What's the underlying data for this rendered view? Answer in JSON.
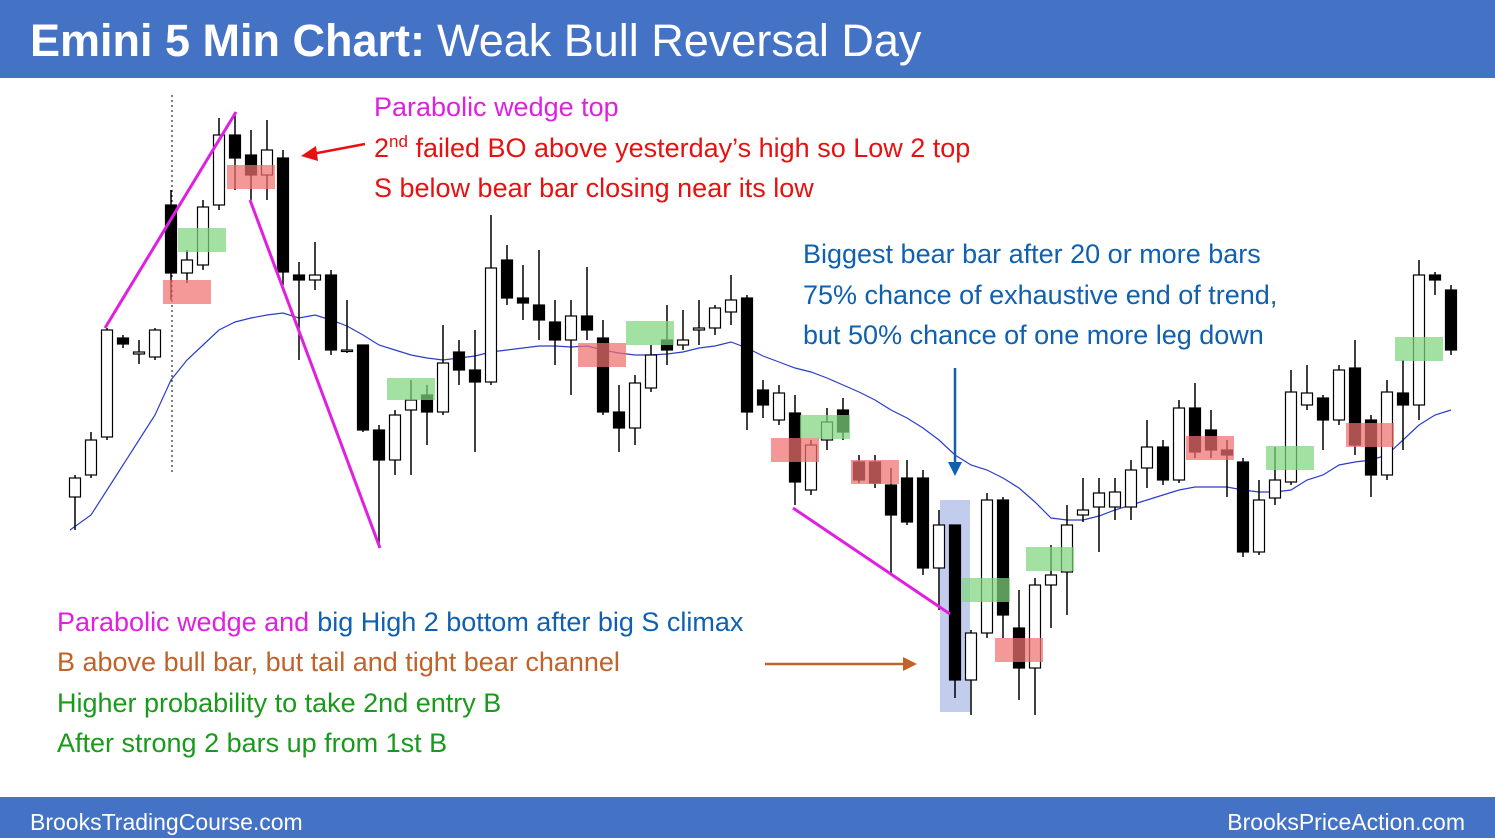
{
  "header": {
    "title_bold": "Emini 5 Min Chart:",
    "title_rest": "Weak Bull Reversal Day"
  },
  "chart_data": {
    "type": "candlestick",
    "ylim": [
      0,
      800
    ],
    "bull_color": "#ffffff",
    "bear_color": "#000000",
    "ma_color": "#2b3fc8",
    "candles": [
      [
        303,
        325,
        270,
        322
      ],
      [
        325,
        368,
        322,
        360
      ],
      [
        363,
        472,
        360,
        470
      ],
      [
        462,
        465,
        452,
        456
      ],
      [
        446,
        460,
        436,
        448
      ],
      [
        443,
        472,
        440,
        470
      ],
      [
        595,
        610,
        500,
        527
      ],
      [
        527,
        550,
        517,
        540
      ],
      [
        535,
        600,
        530,
        593
      ],
      [
        595,
        682,
        590,
        665
      ],
      [
        665,
        688,
        610,
        642
      ],
      [
        645,
        670,
        600,
        625
      ],
      [
        625,
        680,
        600,
        650
      ],
      [
        642,
        650,
        515,
        528
      ],
      [
        525,
        538,
        440,
        520
      ],
      [
        520,
        558,
        510,
        525
      ],
      [
        525,
        530,
        445,
        450
      ],
      [
        450,
        500,
        447,
        450
      ],
      [
        455,
        455,
        368,
        370
      ],
      [
        370,
        375,
        252,
        340
      ],
      [
        340,
        390,
        325,
        385
      ],
      [
        390,
        420,
        325,
        400
      ],
      [
        405,
        415,
        355,
        388
      ],
      [
        388,
        475,
        385,
        437
      ],
      [
        448,
        460,
        415,
        430
      ],
      [
        430,
        470,
        348,
        418
      ],
      [
        418,
        585,
        415,
        532
      ],
      [
        540,
        555,
        495,
        502
      ],
      [
        502,
        535,
        480,
        497
      ],
      [
        495,
        550,
        460,
        480
      ],
      [
        478,
        500,
        435,
        460
      ],
      [
        460,
        500,
        405,
        484
      ],
      [
        484,
        533,
        460,
        470
      ],
      [
        462,
        480,
        385,
        388
      ],
      [
        388,
        415,
        348,
        372
      ],
      [
        372,
        425,
        355,
        417
      ],
      [
        412,
        455,
        408,
        445
      ],
      [
        460,
        495,
        435,
        450
      ],
      [
        455,
        490,
        450,
        460
      ],
      [
        470,
        500,
        455,
        472
      ],
      [
        472,
        495,
        465,
        492
      ],
      [
        488,
        525,
        475,
        500
      ],
      [
        502,
        505,
        370,
        388
      ],
      [
        410,
        420,
        382,
        395
      ],
      [
        380,
        415,
        375,
        407
      ],
      [
        387,
        405,
        295,
        318
      ],
      [
        310,
        360,
        305,
        355
      ],
      [
        360,
        392,
        350,
        378
      ],
      [
        390,
        402,
        360,
        368
      ],
      [
        338,
        345,
        317,
        320
      ],
      [
        338,
        345,
        312,
        317
      ],
      [
        315,
        332,
        225,
        285
      ],
      [
        322,
        340,
        275,
        278
      ],
      [
        322,
        330,
        225,
        232
      ],
      [
        232,
        290,
        190,
        275
      ],
      [
        275,
        275,
        102,
        120
      ],
      [
        120,
        170,
        85,
        167
      ],
      [
        167,
        307,
        162,
        300
      ],
      [
        300,
        303,
        162,
        185
      ],
      [
        172,
        210,
        100,
        132
      ],
      [
        132,
        222,
        85,
        215
      ],
      [
        215,
        255,
        172,
        225
      ],
      [
        228,
        295,
        185,
        275
      ],
      [
        285,
        322,
        278,
        290
      ],
      [
        293,
        322,
        248,
        307
      ],
      [
        293,
        322,
        280,
        308
      ],
      [
        293,
        340,
        280,
        330
      ],
      [
        332,
        380,
        312,
        353
      ],
      [
        353,
        360,
        315,
        320
      ],
      [
        320,
        400,
        317,
        392
      ],
      [
        392,
        417,
        342,
        348
      ],
      [
        370,
        390,
        342,
        350
      ],
      [
        350,
        360,
        303,
        345
      ],
      [
        338,
        342,
        243,
        248
      ],
      [
        248,
        320,
        245,
        300
      ],
      [
        302,
        353,
        295,
        320
      ],
      [
        318,
        430,
        315,
        408
      ],
      [
        395,
        435,
        390,
        407
      ],
      [
        402,
        405,
        350,
        380
      ],
      [
        380,
        435,
        375,
        430
      ],
      [
        432,
        460,
        345,
        355
      ],
      [
        380,
        385,
        303,
        325
      ],
      [
        325,
        420,
        320,
        408
      ],
      [
        407,
        440,
        350,
        395
      ],
      [
        395,
        540,
        380,
        525
      ],
      [
        525,
        528,
        505,
        520
      ],
      [
        510,
        515,
        445,
        450
      ]
    ],
    "ma": [
      270,
      285,
      310,
      335,
      360,
      385,
      420,
      440,
      455,
      470,
      478,
      482,
      485,
      487,
      482,
      485,
      480,
      474,
      465,
      455,
      450,
      445,
      442,
      440,
      442,
      444,
      448,
      450,
      452,
      454,
      454,
      453,
      454,
      450,
      447,
      445,
      445,
      446,
      448,
      452,
      454,
      458,
      452,
      444,
      438,
      432,
      428,
      422,
      415,
      408,
      400,
      390,
      382,
      372,
      360,
      345,
      335,
      330,
      322,
      312,
      298,
      282,
      280,
      280,
      284,
      290,
      295,
      300,
      305,
      310,
      313,
      313,
      313,
      310,
      308,
      308,
      310,
      320,
      325,
      335,
      338,
      340,
      345,
      360,
      375,
      385,
      390
    ],
    "annotations": {
      "wedge_top": "Parabolic wedge top",
      "failed_bo": [
        "2",
        "nd",
        " failed BO above yesterday’s high so Low 2 top"
      ],
      "sell_below": "S below bear bar closing near its low",
      "biggest_bear": [
        "Biggest bear bar after 20 or more bars",
        "75% chance of exhaustive end of trend,",
        "but 50% chance of one more leg down"
      ],
      "bottom_wedge": [
        "Parabolic wedge and",
        "big High 2 bottom after big S climax"
      ],
      "buy_above": "B above bull bar, but tail and tight bear channel",
      "second_entry": "Higher probability to take 2nd entry B",
      "after_strong": "After strong 2 bars up from 1st B"
    }
  },
  "footer": {
    "left": "BrooksTradingCourse.com",
    "right": "BrooksPriceAction.com"
  }
}
